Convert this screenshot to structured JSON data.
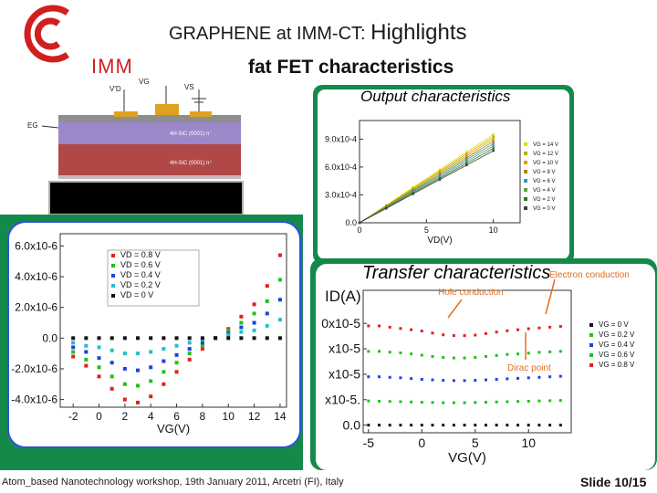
{
  "header": {
    "title_prefix": "GRAPHENE at IMM-CT:",
    "title_highlight": "Highlights",
    "subtitle": "fat FET characteristics",
    "logo_text": "IMM"
  },
  "device": {
    "labels": {
      "vd": "V'D",
      "vg": "VG",
      "vs": "VS",
      "eg": "EG",
      "layer_top": "4H-SiC (0001) n⁻",
      "layer_bottom": "4H-SiC (0001) n⁺"
    }
  },
  "sections": {
    "output_title": "Output characteristics",
    "transfer_title": "Transfer characteristics",
    "electron_conduction": "Electron conduction",
    "hole_conduction": "Hole conduction",
    "dirac_point": "Dirac point"
  },
  "footer": {
    "text": "Atom_based Nanotechnology workshop, 19th January 2011, Arcetri (FI), Italy",
    "slide": "Slide 10/15"
  },
  "chart_data": [
    {
      "id": "output",
      "type": "line",
      "title": "",
      "xlabel": "VD(V)",
      "ylabel": "",
      "xlim": [
        0,
        12
      ],
      "ylim": [
        0,
        0.0011
      ],
      "x_ticks": [
        "0",
        "5",
        "10"
      ],
      "y_ticks": [
        "0.0",
        "3.0x10-4",
        "6.0x10-4",
        "9.0x10-4"
      ],
      "series": [
        {
          "name": "VG = 14 V",
          "x": [
            0,
            2,
            4,
            6,
            8,
            10
          ],
          "y": [
            0,
            0.00019,
            0.00038,
            0.00057,
            0.00076,
            0.00095
          ]
        },
        {
          "name": "VG = 12 V",
          "x": [
            0,
            2,
            4,
            6,
            8,
            10
          ],
          "y": [
            0,
            0.000185,
            0.00037,
            0.000555,
            0.00074,
            0.000925
          ]
        },
        {
          "name": "VG = 10 V",
          "x": [
            0,
            2,
            4,
            6,
            8,
            10
          ],
          "y": [
            0,
            0.00018,
            0.00036,
            0.00054,
            0.00072,
            0.0009
          ]
        },
        {
          "name": "VG = 8 V",
          "x": [
            0,
            2,
            4,
            6,
            8,
            10
          ],
          "y": [
            0,
            0.000175,
            0.00035,
            0.000525,
            0.0007,
            0.000875
          ]
        },
        {
          "name": "VG = 6 V",
          "x": [
            0,
            2,
            4,
            6,
            8,
            10
          ],
          "y": [
            0,
            0.00017,
            0.00034,
            0.00051,
            0.00068,
            0.00085
          ]
        },
        {
          "name": "VG = 4 V",
          "x": [
            0,
            2,
            4,
            6,
            8,
            10
          ],
          "y": [
            0,
            0.000165,
            0.00033,
            0.000495,
            0.00066,
            0.000825
          ]
        },
        {
          "name": "VG = 2 V",
          "x": [
            0,
            2,
            4,
            6,
            8,
            10
          ],
          "y": [
            0,
            0.00016,
            0.00032,
            0.00048,
            0.00064,
            0.0008
          ]
        },
        {
          "name": "VG = 0 V",
          "x": [
            0,
            2,
            4,
            6,
            8,
            10
          ],
          "y": [
            0,
            0.000155,
            0.00031,
            0.000465,
            0.00062,
            0.000775
          ]
        }
      ],
      "colors": [
        "#e0e000",
        "#b0b000",
        "#d6a000",
        "#c07a00",
        "#3c8cd0",
        "#5aa050",
        "#208020",
        "#404040"
      ],
      "legend": "right"
    },
    {
      "id": "gate-current",
      "type": "scatter",
      "title": "",
      "xlabel": "VG(V)",
      "ylabel": "",
      "xlim": [
        -3,
        14.5
      ],
      "ylim": [
        -4.5e-06,
        6.8e-06
      ],
      "x_ticks": [
        "-2",
        "0",
        "2",
        "4",
        "6",
        "8",
        "10",
        "12",
        "14"
      ],
      "y_ticks": [
        "6.0x10-6",
        "4.0x10-6",
        "2.0x10-6",
        "0.0",
        "-2.0x10-6",
        "-4.0x10-6"
      ],
      "series": [
        {
          "name": "VD = 0.8 V",
          "x": [
            -2,
            -1,
            0,
            1,
            2,
            3,
            4,
            5,
            6,
            7,
            8,
            9,
            10,
            11,
            12,
            13,
            14
          ],
          "y": [
            -1.2e-06,
            -1.8e-06,
            -2.5e-06,
            -3.3e-06,
            -4e-06,
            -4.2e-06,
            -3.8e-06,
            -3e-06,
            -2.2e-06,
            -1.4e-06,
            -7e-07,
            0,
            6e-07,
            1.4e-06,
            2.2e-06,
            3.4e-06,
            5.4e-06
          ]
        },
        {
          "name": "VD = 0.6 V",
          "x": [
            -2,
            -1,
            0,
            1,
            2,
            3,
            4,
            5,
            6,
            7,
            8,
            9,
            10,
            11,
            12,
            13,
            14
          ],
          "y": [
            -9e-07,
            -1.4e-06,
            -1.9e-06,
            -2.5e-06,
            -3e-06,
            -3.1e-06,
            -2.8e-06,
            -2.2e-06,
            -1.6e-06,
            -1e-06,
            -5e-07,
            0,
            5e-07,
            1e-06,
            1.6e-06,
            2.4e-06,
            3.8e-06
          ]
        },
        {
          "name": "VD = 0.4 V",
          "x": [
            -2,
            -1,
            0,
            1,
            2,
            3,
            4,
            5,
            6,
            7,
            8,
            9,
            10,
            11,
            12,
            13,
            14
          ],
          "y": [
            -6e-07,
            -9e-07,
            -1.3e-06,
            -1.6e-06,
            -2e-06,
            -2.1e-06,
            -1.9e-06,
            -1.5e-06,
            -1.1e-06,
            -7e-07,
            -3e-07,
            0,
            3e-07,
            7e-07,
            1e-06,
            1.6e-06,
            2.5e-06
          ]
        },
        {
          "name": "VD = 0.2 V",
          "x": [
            -2,
            -1,
            0,
            1,
            2,
            3,
            4,
            5,
            6,
            7,
            8,
            9,
            10,
            11,
            12,
            13,
            14
          ],
          "y": [
            -3e-07,
            -5e-07,
            -6e-07,
            -8e-07,
            -1e-06,
            -1e-06,
            -9e-07,
            -7e-07,
            -5e-07,
            -3e-07,
            -1e-07,
            0,
            2e-07,
            4e-07,
            5e-07,
            8e-07,
            1.2e-06
          ]
        },
        {
          "name": "VD = 0 V",
          "x": [
            -2,
            -1,
            0,
            1,
            2,
            3,
            4,
            5,
            6,
            7,
            8,
            9,
            10,
            11,
            12,
            13,
            14
          ],
          "y": [
            0,
            0,
            0,
            0,
            0,
            0,
            0,
            0,
            0,
            0,
            0,
            0,
            0,
            0,
            0,
            0,
            0
          ]
        }
      ],
      "colors": [
        "#e02020",
        "#20c020",
        "#2040e0",
        "#20c0d0",
        "#111111"
      ],
      "legend": "top-left"
    },
    {
      "id": "transfer",
      "type": "scatter",
      "title": "",
      "xlabel": "VG(V)",
      "ylabel": "ID(A)",
      "xlim": [
        -5.5,
        14
      ],
      "ylim": [
        -3e-07,
        5.3e-06
      ],
      "x_ticks": [
        "-5",
        "0",
        "5",
        "10"
      ],
      "y_ticks": [
        "0.0",
        "x10-5.",
        "x10-5",
        "x10-5",
        "0x10-5"
      ],
      "series": [
        {
          "name": "VG = 0 V",
          "x": [
            -5,
            -4,
            -3,
            -2,
            -1,
            0,
            1,
            2,
            3,
            4,
            5,
            6,
            7,
            8,
            9,
            10,
            11,
            12,
            13
          ],
          "y": [
            0,
            0,
            0,
            0,
            0,
            0,
            0,
            0,
            0,
            0,
            0,
            0,
            0,
            0,
            0,
            0,
            0,
            0,
            0
          ]
        },
        {
          "name": "VG = 0.2 V",
          "x": [
            -5,
            -4,
            -3,
            -2,
            -1,
            0,
            1,
            2,
            3,
            4,
            5,
            6,
            7,
            8,
            9,
            10,
            11,
            12,
            13
          ],
          "y": [
            9.5e-07,
            9.4e-07,
            9.3e-07,
            9.2e-07,
            9.1e-07,
            9e-07,
            8.9e-07,
            8.8e-07,
            8.8e-07,
            8.8e-07,
            8.9e-07,
            9e-07,
            9.1e-07,
            9.2e-07,
            9.3e-07,
            9.4e-07,
            9.5e-07,
            9.6e-07,
            9.7e-07
          ]
        },
        {
          "name": "VG = 0.4 V",
          "x": [
            -5,
            -4,
            -3,
            -2,
            -1,
            0,
            1,
            2,
            3,
            4,
            5,
            6,
            7,
            8,
            9,
            10,
            11,
            12,
            13
          ],
          "y": [
            1.9e-06,
            1.9e-06,
            1.88e-06,
            1.86e-06,
            1.83e-06,
            1.8e-06,
            1.78e-06,
            1.76e-06,
            1.75e-06,
            1.75e-06,
            1.76e-06,
            1.78e-06,
            1.8e-06,
            1.82e-06,
            1.84e-06,
            1.86e-06,
            1.88e-06,
            1.9e-06,
            1.92e-06
          ]
        },
        {
          "name": "VG = 0.6 V",
          "x": [
            -5,
            -4,
            -3,
            -2,
            -1,
            0,
            1,
            2,
            3,
            4,
            5,
            6,
            7,
            8,
            9,
            10,
            11,
            12,
            13
          ],
          "y": [
            2.9e-06,
            2.9e-06,
            2.87e-06,
            2.84e-06,
            2.8e-06,
            2.75e-06,
            2.7e-06,
            2.66e-06,
            2.64e-06,
            2.64e-06,
            2.66e-06,
            2.7e-06,
            2.74e-06,
            2.78e-06,
            2.8e-06,
            2.83e-06,
            2.86e-06,
            2.88e-06,
            2.9e-06
          ]
        },
        {
          "name": "VG = 0.8 V",
          "x": [
            -5,
            -4,
            -3,
            -2,
            -1,
            0,
            1,
            2,
            3,
            4,
            5,
            6,
            7,
            8,
            9,
            10,
            11,
            12,
            13
          ],
          "y": [
            3.9e-06,
            3.9e-06,
            3.85e-06,
            3.8e-06,
            3.75e-06,
            3.7e-06,
            3.62e-06,
            3.55e-06,
            3.52e-06,
            3.52e-06,
            3.54e-06,
            3.6e-06,
            3.66e-06,
            3.71e-06,
            3.75e-06,
            3.79e-06,
            3.82e-06,
            3.85e-06,
            3.88e-06
          ]
        }
      ],
      "colors": [
        "#111111",
        "#20c020",
        "#2040e0",
        "#20c020",
        "#e02020"
      ],
      "legend": "right"
    }
  ]
}
